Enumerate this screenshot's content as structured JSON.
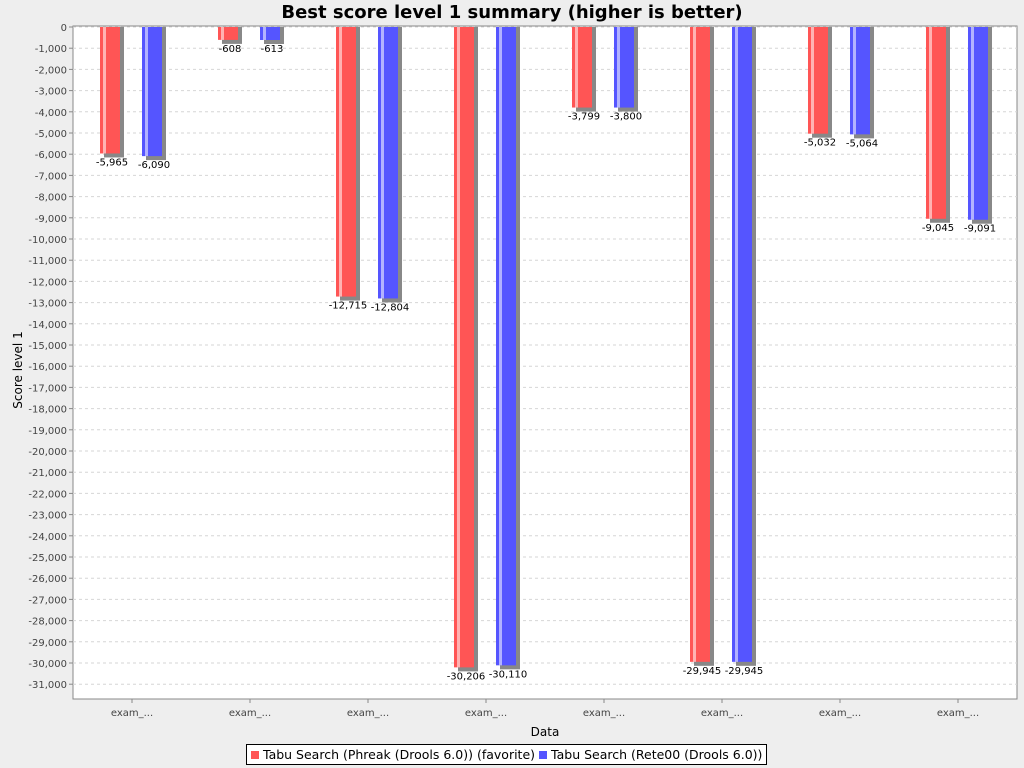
{
  "chart_data": {
    "type": "bar",
    "title": "Best score level 1 summary (higher is better)",
    "xlabel": "Data",
    "ylabel": "Score level 1",
    "ylim": [
      -31500,
      0
    ],
    "ytick_step": 1000,
    "grid": true,
    "legend_position": "bottom",
    "categories": [
      "exam_...",
      "exam_...",
      "exam_...",
      "exam_...",
      "exam_...",
      "exam_...",
      "exam_...",
      "exam_..."
    ],
    "series": [
      {
        "name": "Tabu Search (Phreak (Drools 6.0)) (favorite)",
        "color": "#ff5555",
        "values": [
          -5965,
          -608,
          -12715,
          -30206,
          -3799,
          -29945,
          -5032,
          -9045
        ],
        "labels": [
          "-5,965",
          "-608",
          "-12,715",
          "-30,206",
          "-3,799",
          "-29,945",
          "-5,032",
          "-9,045"
        ]
      },
      {
        "name": "Tabu Search (Rete00 (Drools 6.0))",
        "color": "#5555ff",
        "values": [
          -6090,
          -613,
          -12804,
          -30110,
          -3800,
          -29945,
          -5064,
          -9091
        ],
        "labels": [
          "-6,090",
          "-613",
          "-12,804",
          "-30,110",
          "-3,800",
          "-29,945",
          "-5,064",
          "-9,091"
        ]
      }
    ]
  }
}
